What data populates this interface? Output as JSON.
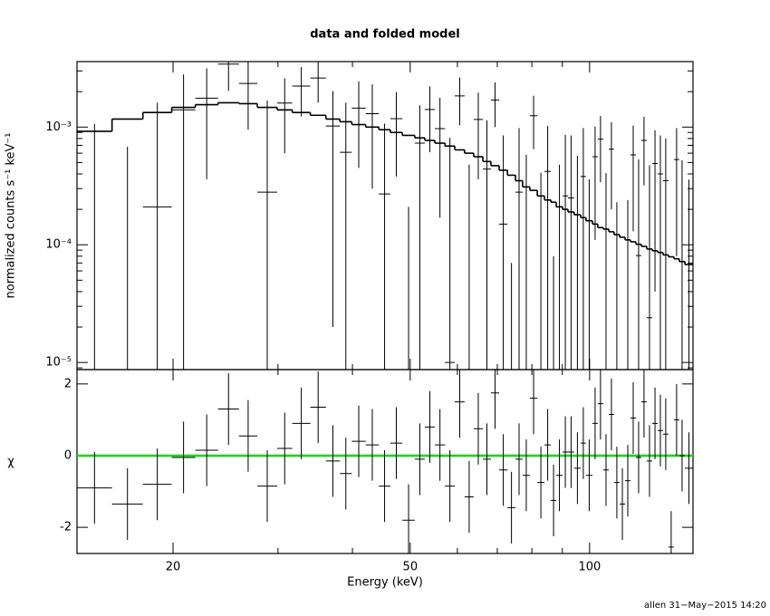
{
  "chart_data": [
    {
      "type": "spectrum",
      "title": "data and folded model",
      "y_label": "normalized counts s⁻¹ keV⁻¹",
      "log_x": true,
      "log_y": true,
      "bins": [
        13.8,
        15.8,
        17.8,
        19.9,
        21.8,
        23.8,
        25.8,
        27.7,
        29.9,
        31.7,
        34.0,
        36.1,
        38.1,
        39.9,
        42.1,
        44.3,
        46.3,
        48.5,
        50.9,
        52.9,
        55.0,
        57.2,
        59.4,
        61.7,
        63.9,
        66.2,
        68.3,
        70.5,
        72.8,
        75.1,
        77.2,
        79.4,
        81.7,
        84.0,
        86.1,
        87.9,
        90.1,
        92.0,
        94.2,
        96.6,
        98.6,
        101.1,
        103.2,
        105.4,
        107.7,
        109.9,
        112.3,
        114.7,
        117.1,
        119.6,
        122.1,
        124.7,
        127.4,
        130.1,
        132.8,
        135.6,
        138.5,
        141.4,
        144.5,
        149.1
      ],
      "xlim": [
        13.8,
        149.1
      ],
      "ylim": [
        8.7e-06,
        0.0036
      ],
      "yticks": [
        {
          "value": 1e-05,
          "label": "10⁻⁵"
        },
        {
          "value": 0.0001,
          "label": "10⁻⁴"
        },
        {
          "value": 0.001,
          "label": "10⁻³"
        }
      ],
      "yminorticks": [
        9e-06,
        2e-05,
        3e-05,
        4e-05,
        5e-05,
        6e-05,
        7e-05,
        8e-05,
        9e-05,
        0.0002,
        0.0003,
        0.0004,
        0.0005,
        0.0006,
        0.0007,
        0.0008,
        0.0009,
        0.002,
        0.003
      ],
      "data": {
        "color": "#000000",
        "values": [
          -0.00034,
          -0.00072,
          0.00021,
          0.0014,
          0.00176,
          0.00343,
          0.00235,
          0.00028,
          0.0016,
          0.00223,
          0.00261,
          0.00102,
          0.00061,
          0.00145,
          0.0013,
          0.00027,
          0.00118,
          -0.00059,
          0.00073,
          0.00141,
          0.00097,
          1e-05,
          0.00184,
          -0.00032,
          0.00116,
          0.00044,
          0.0017,
          0.00015,
          -0.00063,
          0.00028,
          -2e-05,
          0.00125,
          -0.00019,
          0.00042,
          -0.00052,
          -0.00012,
          0.00026,
          0.00025,
          -3e-05,
          0.00038,
          -9e-05,
          0.00056,
          0.00079,
          -4.4e-05,
          0.00065,
          -0.00022,
          -0.00049,
          -0.00021,
          0.00058,
          8.1e-05,
          0.00077,
          2.4e-05,
          0.00049,
          0.0004,
          0.00035,
          -0.00107,
          0.00053,
          7.2e-05,
          -9.2e-05
        ],
        "errors": [
          0.0014,
          0.0014,
          0.0014,
          0.0014,
          0.0014,
          0.0014,
          0.0014,
          0.0014,
          0.001,
          0.001,
          0.001,
          0.001,
          0.001,
          0.001,
          0.001,
          0.0008,
          0.0008,
          0.0008,
          0.0008,
          0.0008,
          0.0008,
          0.0008,
          0.0008,
          0.0008,
          0.0008,
          0.0007,
          0.0007,
          0.0007,
          0.0007,
          0.0007,
          0.0006,
          0.0006,
          0.0006,
          0.0006,
          0.0006,
          0.0006,
          0.0006,
          0.0006,
          0.0006,
          0.0006,
          0.00045,
          0.00045,
          0.00045,
          0.00045,
          0.00045,
          0.00045,
          0.00045,
          0.00045,
          0.00045,
          0.00045,
          0.00045,
          0.00045,
          0.00045,
          0.00045,
          0.00045,
          0.00045,
          0.00045,
          0.00045,
          0.00045
        ]
      },
      "model": {
        "color": "#000000",
        "values": [
          0.00092,
          0.00117,
          0.00133,
          0.00147,
          0.00155,
          0.00161,
          0.00158,
          0.00147,
          0.0014,
          0.00133,
          0.00126,
          0.00117,
          0.00111,
          0.00105,
          0.001,
          0.00095,
          0.0009,
          0.00085,
          0.00081,
          0.00077,
          0.00073,
          0.00069,
          0.00064,
          0.0006,
          0.00056,
          0.00051,
          0.00047,
          0.00043,
          0.00039,
          0.00035,
          0.00031,
          0.00029,
          0.00026,
          0.00024,
          0.00023,
          0.00021,
          0.0002,
          0.00019,
          0.00018,
          0.00017,
          0.00016,
          0.00015,
          0.00014,
          0.000136,
          0.000129,
          0.000122,
          0.000116,
          0.00011,
          0.000106,
          0.000101,
          9.7e-05,
          9.2e-05,
          8.9e-05,
          8.6e-05,
          8.2e-05,
          7.9e-05,
          7.6e-05,
          7.2e-05,
          6.8e-05
        ]
      }
    },
    {
      "type": "residual",
      "y_label": "χ",
      "x_label": "Energy (keV)",
      "xticks": [
        20,
        50,
        100
      ],
      "xminorticks": [
        30,
        40,
        60,
        70,
        80,
        90
      ],
      "ylim": [
        -2.73,
        2.4
      ],
      "yticks": [
        -2,
        0,
        2
      ],
      "color": "#000000",
      "values": [
        -0.9,
        -1.35,
        -0.8,
        -0.05,
        0.15,
        1.3,
        0.55,
        -0.85,
        0.2,
        0.9,
        1.35,
        -0.15,
        -0.5,
        0.4,
        0.3,
        -0.85,
        0.35,
        -1.8,
        -0.1,
        0.8,
        0.3,
        -0.85,
        1.5,
        -1.15,
        0.75,
        -0.1,
        1.75,
        -0.4,
        -1.45,
        -0.1,
        -0.55,
        1.6,
        -0.75,
        0.3,
        -1.25,
        -0.55,
        0.1,
        0.1,
        -0.35,
        0.35,
        -0.55,
        0.9,
        1.45,
        -0.4,
        1.15,
        -0.75,
        -1.35,
        -0.7,
        1.05,
        -0.05,
        1.5,
        -0.15,
        0.9,
        0.7,
        0.6,
        -2.55,
        1.0,
        0,
        -0.35
      ],
      "errors": [
        1,
        1,
        1,
        1,
        1,
        1,
        1,
        1,
        1,
        1,
        1,
        1,
        1,
        1,
        1,
        1,
        1,
        1,
        1,
        1,
        1,
        1,
        1,
        1,
        1,
        1,
        1,
        1,
        1,
        1,
        1,
        1,
        1,
        1,
        1,
        1,
        1,
        1,
        1,
        1,
        1,
        1,
        1,
        1,
        1,
        1,
        1,
        1,
        1,
        1,
        1,
        1,
        1,
        1,
        1,
        1,
        1,
        1,
        1
      ],
      "zero_line": {
        "value": 0,
        "color": "#00dd00"
      }
    }
  ],
  "footer": "allen 31−May−2015 14:20"
}
